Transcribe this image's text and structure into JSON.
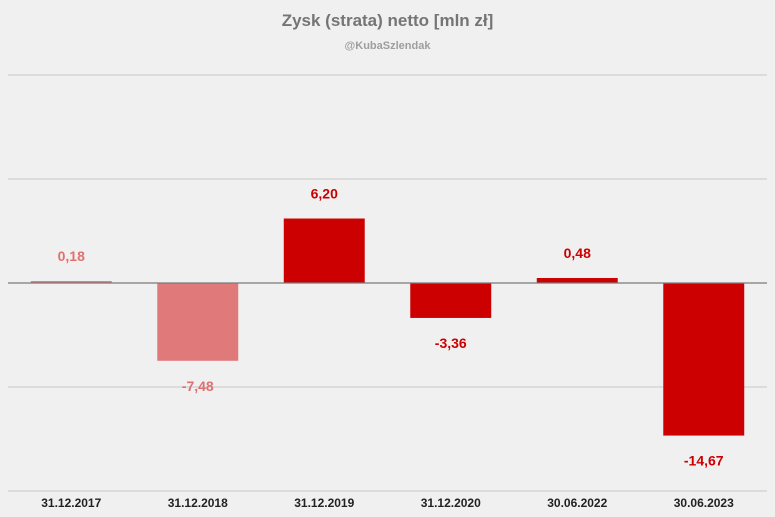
{
  "chart_data": {
    "type": "bar",
    "title": "Zysk (strata) netto [mln zł]",
    "subtitle": "@KubaSzlendak",
    "categories": [
      "31.12.2017",
      "31.12.2018",
      "31.12.2019",
      "31.12.2020",
      "30.06.2022",
      "30.06.2023"
    ],
    "values": [
      0.18,
      -7.48,
      6.2,
      -3.36,
      0.48,
      -14.67
    ],
    "value_labels": [
      "0,18",
      "-7,48",
      "6,20",
      "-3,36",
      "0,48",
      "-14,67"
    ],
    "colors": [
      "#e07070",
      "#e07a7a",
      "#cc0000",
      "#cc0000",
      "#cc0000",
      "#cc0000"
    ],
    "label_colors": [
      "#e07070",
      "#e07070",
      "#cc0000",
      "#cc0000",
      "#cc0000",
      "#cc0000"
    ],
    "ylim": [
      -20,
      20
    ],
    "grid": true,
    "legend": "none"
  }
}
